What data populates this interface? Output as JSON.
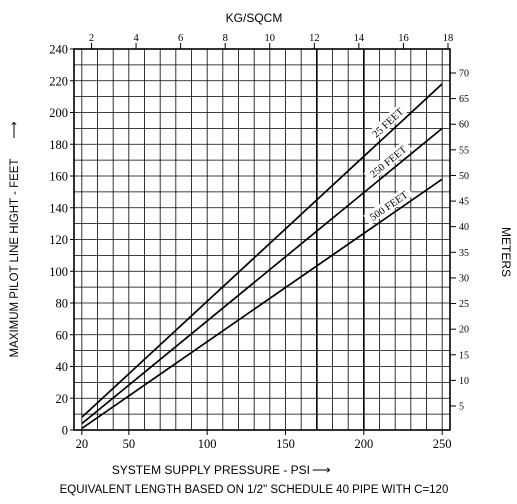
{
  "chart_data": {
    "type": "line",
    "title": "KG/SQCM",
    "xlabel": "SYSTEM SUPPLY PRESSURE - PSI",
    "xlabel_arrow": "⟶",
    "ylabel": "MAXIMUM PILOT LINE HIGHT - FEET",
    "ylabel_arrow": "⟶",
    "y2label": "METERS",
    "footnote": "EQUIVALENT LENGTH BASED ON 1/2\" SCHEDULE 40 PIPE WITH C=120",
    "xlim": [
      15,
      255
    ],
    "ylim": [
      0,
      240
    ],
    "x_ticks": [
      "20",
      "50",
      "100",
      "150",
      "200",
      "250"
    ],
    "y_ticks": [
      "0",
      "20",
      "40",
      "60",
      "80",
      "100",
      "120",
      "140",
      "160",
      "180",
      "200",
      "220",
      "240"
    ],
    "top_ticks": [
      "2",
      "4",
      "6",
      "8",
      "10",
      "12",
      "14",
      "16",
      "18"
    ],
    "right_ticks": [
      "5",
      "10",
      "15",
      "20",
      "25",
      "30",
      "35",
      "40",
      "45",
      "50",
      "55",
      "60",
      "65",
      "70"
    ],
    "grid": true,
    "series": [
      {
        "name": "25 FEET",
        "x": [
          20,
          250
        ],
        "y": [
          8,
          218
        ]
      },
      {
        "name": "250 FEET",
        "x": [
          20,
          250
        ],
        "y": [
          4,
          190
        ]
      },
      {
        "name": "500 FEET",
        "x": [
          20,
          250
        ],
        "y": [
          1,
          158
        ]
      }
    ]
  }
}
